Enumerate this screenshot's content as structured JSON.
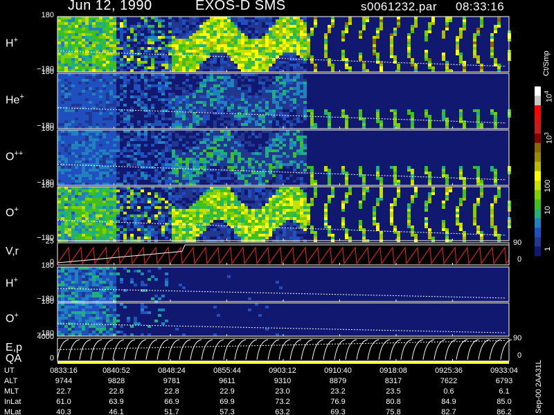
{
  "header": {
    "date": "Jun 12, 1990",
    "instrument": "EXOS-D SMS",
    "file": "s0061232.par",
    "time": "08:33:16"
  },
  "panels": [
    {
      "label": "H",
      "sup": "+",
      "ymax": "180",
      "ymin": "−180"
    },
    {
      "label": "He",
      "sup": "+",
      "ymax": "180",
      "ymin": "−180"
    },
    {
      "label": "O",
      "sup": "++",
      "ymax": "180",
      "ymin": "−180"
    },
    {
      "label": "O",
      "sup": "+",
      "ymax": "180",
      "ymin": "−180"
    },
    {
      "label": "V,r",
      "sup": "",
      "ymax": "25",
      "ymin": "0",
      "right": "90",
      "right_min": "0"
    },
    {
      "label": "H",
      "sup": "+",
      "ymax": "180",
      "ymin": "−180"
    },
    {
      "label": "O",
      "sup": "+",
      "ymax": "180",
      "ymin": "−180"
    },
    {
      "label": "E,p",
      "sup": "",
      "label2": "QA",
      "ymax": "4000",
      "ymin": "0",
      "right": "90",
      "right_min": "0"
    }
  ],
  "colorbar": {
    "unit": "Ct/Smp",
    "labels": [
      {
        "text": "10",
        "sup": "4"
      },
      {
        "text": "10",
        "sup": "3"
      },
      {
        "text": "100",
        "sup": ""
      },
      {
        "text": "10",
        "sup": ""
      },
      {
        "text": "1",
        "sup": ""
      }
    ],
    "colors": [
      "#ffffff",
      "#c8c8c8",
      "#ff0000",
      "#e01010",
      "#c02020",
      "#800000",
      "#8a6a00",
      "#9a8a00",
      "#b8b800",
      "#ffff00",
      "#c8e000",
      "#80d000",
      "#40c020",
      "#20b080",
      "#2080c0",
      "#2050c0",
      "#203890",
      "#101870"
    ]
  },
  "footer": {
    "rows": [
      {
        "name": "UT",
        "values": [
          "0833:16",
          "0840:52",
          "0848:24",
          "0855:44",
          "0903:12",
          "0910:40",
          "0918:08",
          "0925:36",
          "0933:04"
        ]
      },
      {
        "name": "ALT",
        "values": [
          "9744",
          "9828",
          "9781",
          "9611",
          "9310",
          "8879",
          "8317",
          "7622",
          "6793"
        ]
      },
      {
        "name": "MLT",
        "values": [
          "22.7",
          "22.8",
          "22.8",
          "22.9",
          "23.0",
          "23.2",
          "23.5",
          "0.6",
          "6.1"
        ]
      },
      {
        "name": "InLat",
        "values": [
          "61.0",
          "63.9",
          "66.9",
          "69.9",
          "73.2",
          "76.9",
          "80.8",
          "84.9",
          "85.0"
        ]
      },
      {
        "name": "MLat",
        "values": [
          "40.3",
          "46.1",
          "51.7",
          "57.3",
          "63.2",
          "69.3",
          "75.8",
          "82.7",
          "86.2"
        ]
      }
    ],
    "side_label": "Sep-00 2AA31L"
  },
  "chart_data": {
    "type": "heatmap",
    "title": "Jun 12, 1990 EXOS-D SMS",
    "xlabel": "UT",
    "x": [
      "0833:16",
      "0840:52",
      "0848:24",
      "0855:44",
      "0903:12",
      "0910:40",
      "0918:08",
      "0925:36",
      "0933:04"
    ],
    "ylim": [
      -180,
      180
    ],
    "colorbar_label": "Ct/Smp",
    "colorbar_range": [
      1,
      10000
    ],
    "scale": "log",
    "series": [
      {
        "name": "H+"
      },
      {
        "name": "He+"
      },
      {
        "name": "O++"
      },
      {
        "name": "O+"
      },
      {
        "name": "V,r",
        "ylim": [
          0,
          25
        ]
      },
      {
        "name": "H+"
      },
      {
        "name": "O+"
      },
      {
        "name": "E,p",
        "ylim": [
          0,
          4000
        ]
      }
    ]
  }
}
